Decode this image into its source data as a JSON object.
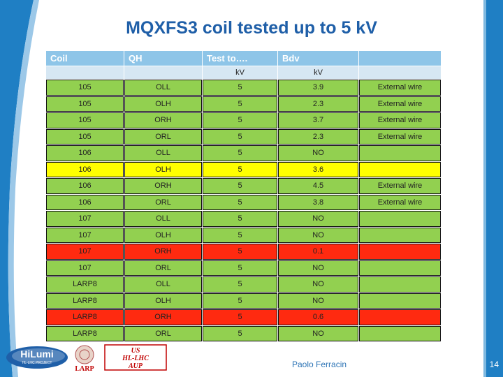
{
  "title": "MQXFS3 coil tested up to 5 kV",
  "header": [
    "Coil",
    "QH",
    "Test to….",
    "Bdv",
    ""
  ],
  "subheader": [
    "",
    "",
    "kV",
    "kV",
    ""
  ],
  "rows": [
    {
      "coil": "105",
      "qh": "OLL",
      "test": "5",
      "bdv": "3.9",
      "note": "External wire",
      "color": "g"
    },
    {
      "coil": "105",
      "qh": "OLH",
      "test": "5",
      "bdv": "2.3",
      "note": "External wire",
      "color": "g"
    },
    {
      "coil": "105",
      "qh": "ORH",
      "test": "5",
      "bdv": "3.7",
      "note": "External wire",
      "color": "g"
    },
    {
      "coil": "105",
      "qh": "ORL",
      "test": "5",
      "bdv": "2.3",
      "note": "External wire",
      "color": "g"
    },
    {
      "coil": "106",
      "qh": "OLL",
      "test": "5",
      "bdv": "NO",
      "note": "",
      "color": "g"
    },
    {
      "coil": "106",
      "qh": "OLH",
      "test": "5",
      "bdv": "3.6",
      "note": "",
      "color": "y"
    },
    {
      "coil": "106",
      "qh": "ORH",
      "test": "5",
      "bdv": "4.5",
      "note": "External wire",
      "color": "g"
    },
    {
      "coil": "106",
      "qh": "ORL",
      "test": "5",
      "bdv": "3.8",
      "note": "External wire",
      "color": "g"
    },
    {
      "coil": "107",
      "qh": "OLL",
      "test": "5",
      "bdv": "NO",
      "note": "",
      "color": "g"
    },
    {
      "coil": "107",
      "qh": "OLH",
      "test": "5",
      "bdv": "NO",
      "note": "",
      "color": "g"
    },
    {
      "coil": "107",
      "qh": "ORH",
      "test": "5",
      "bdv": "0.1",
      "note": "",
      "color": "r"
    },
    {
      "coil": "107",
      "qh": "ORL",
      "test": "5",
      "bdv": "NO",
      "note": "",
      "color": "g"
    },
    {
      "coil": "LARP8",
      "qh": "OLL",
      "test": "5",
      "bdv": "NO",
      "note": "",
      "color": "g"
    },
    {
      "coil": "LARP8",
      "qh": "OLH",
      "test": "5",
      "bdv": "NO",
      "note": "",
      "color": "g"
    },
    {
      "coil": "LARP8",
      "qh": "ORH",
      "test": "5",
      "bdv": "0.6",
      "note": "",
      "color": "r"
    },
    {
      "coil": "LARP8",
      "qh": "ORL",
      "test": "5",
      "bdv": "NO",
      "note": "",
      "color": "g"
    }
  ],
  "logos": {
    "hilumi": "HiLumi",
    "hilumi_sub": "HL-LHC PROJECT",
    "larp": "LARP",
    "us1": "US",
    "us2": "HL-LHC",
    "us3": "AUP"
  },
  "footer": {
    "author": "Paolo Ferracin",
    "page": "14"
  }
}
